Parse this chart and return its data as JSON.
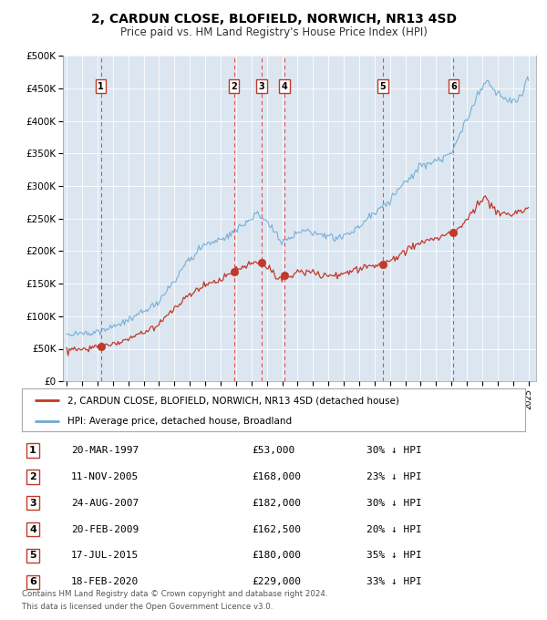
{
  "title": "2, CARDUN CLOSE, BLOFIELD, NORWICH, NR13 4SD",
  "subtitle": "Price paid vs. HM Land Registry's House Price Index (HPI)",
  "legend_line1": "2, CARDUN CLOSE, BLOFIELD, NORWICH, NR13 4SD (detached house)",
  "legend_line2": "HPI: Average price, detached house, Broadland",
  "footer_line1": "Contains HM Land Registry data © Crown copyright and database right 2024.",
  "footer_line2": "This data is licensed under the Open Government Licence v3.0.",
  "sales": [
    {
      "label": "1",
      "date_str": "20-MAR-1997",
      "price": 53000,
      "pct": "30% ↓ HPI",
      "date_num": 1997.21
    },
    {
      "label": "2",
      "date_str": "11-NOV-2005",
      "price": 168000,
      "pct": "23% ↓ HPI",
      "date_num": 2005.86
    },
    {
      "label": "3",
      "date_str": "24-AUG-2007",
      "price": 182000,
      "pct": "30% ↓ HPI",
      "date_num": 2007.65
    },
    {
      "label": "4",
      "date_str": "20-FEB-2009",
      "price": 162500,
      "pct": "20% ↓ HPI",
      "date_num": 2009.13
    },
    {
      "label": "5",
      "date_str": "17-JUL-2015",
      "price": 180000,
      "pct": "35% ↓ HPI",
      "date_num": 2015.54
    },
    {
      "label": "6",
      "date_str": "18-FEB-2020",
      "price": 229000,
      "pct": "33% ↓ HPI",
      "date_num": 2020.13
    }
  ],
  "hpi_color": "#6aaad4",
  "sale_color": "#c0392b",
  "plot_bg": "#dce6f1",
  "grid_color": "#ffffff",
  "vline_color": "#e05050",
  "ylim": [
    0,
    500000
  ],
  "xlim_start": 1994.75,
  "xlim_end": 2025.5,
  "yticks": [
    0,
    50000,
    100000,
    150000,
    200000,
    250000,
    300000,
    350000,
    400000,
    450000,
    500000
  ],
  "ytick_labels": [
    "£0",
    "£50K",
    "£100K",
    "£150K",
    "£200K",
    "£250K",
    "£300K",
    "£350K",
    "£400K",
    "£450K",
    "£500K"
  ]
}
